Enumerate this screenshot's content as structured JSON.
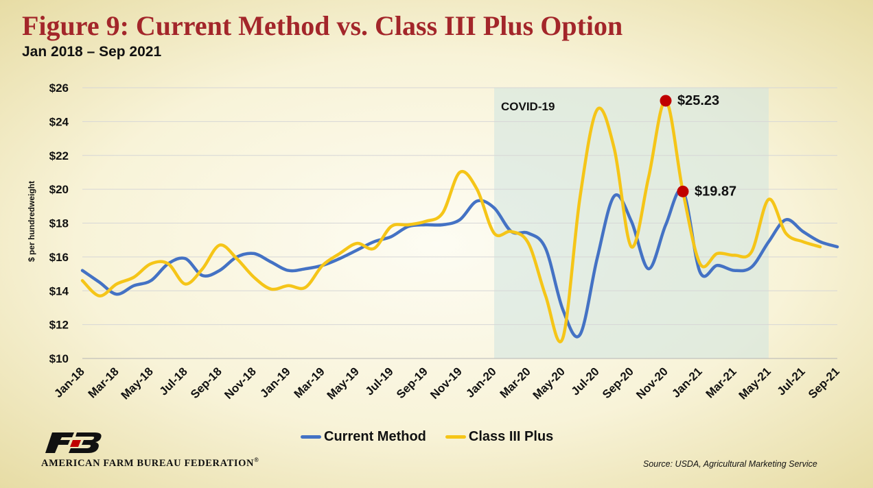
{
  "header": {
    "title": "Figure 9: Current Method vs. Class III Plus Option",
    "subtitle": "Jan 2018 – Sep 2021"
  },
  "chart_data": {
    "type": "line",
    "title": "Figure 9: Current Method vs. Class III Plus Option",
    "subtitle": "Jan 2018 – Sep 2021",
    "xlabel": "",
    "ylabel": "$ per hundredweight",
    "ylim": [
      10,
      26
    ],
    "y_ticks": [
      10,
      12,
      14,
      16,
      18,
      20,
      22,
      24,
      26
    ],
    "y_tick_labels": [
      "$10",
      "$12",
      "$14",
      "$16",
      "$18",
      "$20",
      "$22",
      "$24",
      "$26"
    ],
    "x": [
      "Jan-18",
      "Feb-18",
      "Mar-18",
      "Apr-18",
      "May-18",
      "Jun-18",
      "Jul-18",
      "Aug-18",
      "Sep-18",
      "Oct-18",
      "Nov-18",
      "Dec-18",
      "Jan-19",
      "Feb-19",
      "Mar-19",
      "Apr-19",
      "May-19",
      "Jun-19",
      "Jul-19",
      "Aug-19",
      "Sep-19",
      "Oct-19",
      "Nov-19",
      "Dec-19",
      "Jan-20",
      "Feb-20",
      "Mar-20",
      "Apr-20",
      "May-20",
      "Jun-20",
      "Jul-20",
      "Aug-20",
      "Sep-20",
      "Oct-20",
      "Nov-20",
      "Dec-20",
      "Jan-21",
      "Feb-21",
      "Mar-21",
      "Apr-21",
      "May-21",
      "Jun-21",
      "Jul-21",
      "Aug-21",
      "Sep-21"
    ],
    "x_tick_labels": [
      "Jan-18",
      "Mar-18",
      "May-18",
      "Jul-18",
      "Sep-18",
      "Nov-18",
      "Jan-19",
      "Mar-19",
      "May-19",
      "Jul-19",
      "Sep-19",
      "Nov-19",
      "Jan-20",
      "Mar-20",
      "May-20",
      "Jul-20",
      "Sep-20",
      "Nov-20",
      "Jan-21",
      "Mar-21",
      "May-21",
      "Jul-21",
      "Sep-21"
    ],
    "series": [
      {
        "name": "Current Method",
        "color": "#4472c4",
        "values": [
          15.2,
          14.5,
          13.8,
          14.3,
          14.6,
          15.6,
          15.9,
          14.9,
          15.2,
          16.0,
          16.2,
          15.7,
          15.2,
          15.3,
          15.5,
          15.9,
          16.4,
          16.9,
          17.2,
          17.8,
          17.9,
          17.9,
          18.2,
          19.3,
          18.9,
          17.5,
          17.4,
          16.5,
          12.9,
          11.4,
          15.9,
          19.6,
          18.1,
          15.3,
          17.9,
          19.9,
          15.1,
          15.5,
          15.2,
          15.4,
          16.9,
          18.2,
          17.5,
          16.9,
          16.6
        ]
      },
      {
        "name": "Class III Plus",
        "color": "#f5c518",
        "values": [
          14.6,
          13.7,
          14.4,
          14.8,
          15.6,
          15.6,
          14.4,
          15.3,
          16.7,
          15.9,
          14.8,
          14.1,
          14.3,
          14.2,
          15.5,
          16.2,
          16.8,
          16.5,
          17.8,
          17.9,
          18.1,
          18.6,
          21.0,
          20.0,
          17.4,
          17.5,
          16.8,
          13.7,
          11.2,
          19.5,
          24.7,
          22.4,
          16.6,
          20.7,
          25.23,
          19.87,
          15.6,
          16.2,
          16.1,
          16.3,
          19.4,
          17.4,
          16.9,
          16.6,
          null
        ]
      }
    ],
    "shaded_region": {
      "label": "COVID-19",
      "from": "Jan-20",
      "to": "May-21"
    },
    "annotations": [
      {
        "label": "$25.23",
        "x": "Nov-20",
        "y": 25.23,
        "marker_color": "#c00000"
      },
      {
        "label": "$19.87",
        "x": "Dec-20",
        "y": 19.87,
        "marker_color": "#c00000"
      }
    ],
    "legend": "bottom",
    "grid": true
  },
  "footer": {
    "organization": "AMERICAN FARM BUREAU FEDERATION",
    "registered_mark": "®",
    "source": "Source: USDA, Agricultural Marketing Service"
  }
}
